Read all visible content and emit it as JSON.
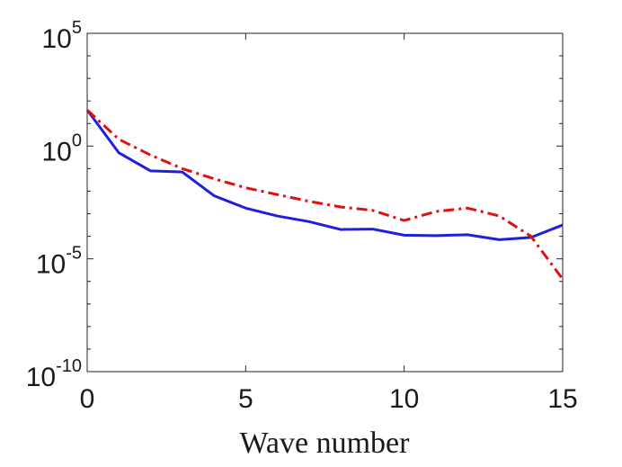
{
  "chart_data": {
    "type": "line",
    "title": "",
    "xlabel": "Wave number",
    "ylabel": "",
    "xlim": [
      0,
      15
    ],
    "ylim_log10": [
      -10,
      5
    ],
    "yscale": "log",
    "x_ticks": [
      0,
      5,
      10,
      15
    ],
    "x_tick_labels": [
      "0",
      "5",
      "10",
      "15"
    ],
    "y_ticks": [
      {
        "base": "10",
        "exponent": "5",
        "log10": 5
      },
      {
        "base": "10",
        "exponent": "0",
        "log10": 0
      },
      {
        "base": "10",
        "exponent": "-5",
        "log10": -5
      },
      {
        "base": "10",
        "exponent": "-10",
        "log10": -10
      }
    ],
    "x": [
      0,
      1,
      2,
      3,
      4,
      5,
      6,
      7,
      8,
      9,
      10,
      11,
      12,
      13,
      14,
      15
    ],
    "series": [
      {
        "name": "solid",
        "color": "#1f1fdc",
        "dash": "solid",
        "log10_values": [
          1.6,
          -0.3,
          -1.1,
          -1.15,
          -2.2,
          -2.75,
          -3.1,
          -3.35,
          -3.7,
          -3.68,
          -3.95,
          -3.97,
          -3.93,
          -4.15,
          -4.05,
          -3.5
        ]
      },
      {
        "name": "dash-dot",
        "color": "#e01010",
        "dash": "dashdot",
        "log10_values": [
          1.6,
          0.3,
          -0.4,
          -1.0,
          -1.45,
          -1.85,
          -2.15,
          -2.45,
          -2.7,
          -2.85,
          -3.3,
          -2.9,
          -2.75,
          -3.1,
          -4.0,
          -5.9
        ]
      }
    ]
  }
}
